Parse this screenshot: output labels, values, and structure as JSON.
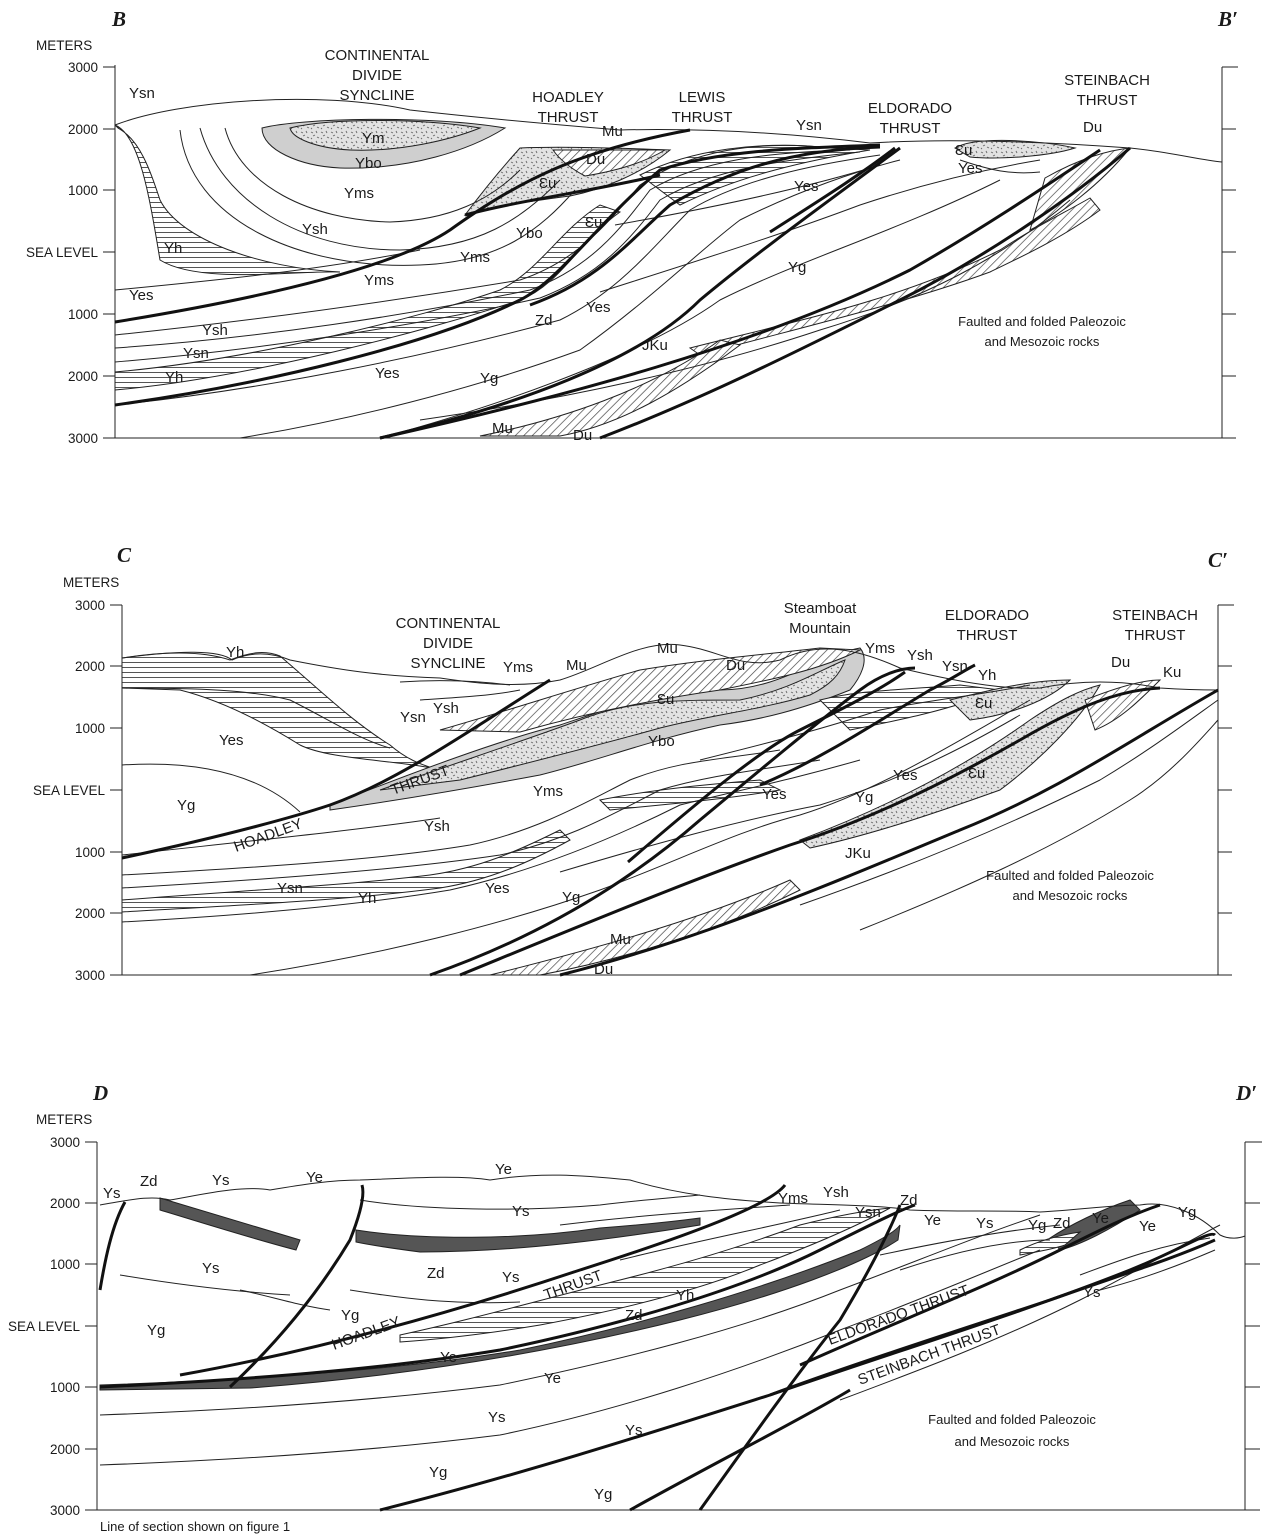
{
  "footer_note": "Line of section shown on figure 1",
  "axis": {
    "meters": "METERS",
    "sea_level": "SEA LEVEL",
    "elevations": [
      "3000",
      "2000",
      "1000",
      "1000",
      "2000",
      "3000"
    ]
  },
  "sections": [
    {
      "id": "B",
      "left": "B",
      "right": "B′",
      "titles": {
        "cds_1": "CONTINENTAL",
        "cds_2": "DIVIDE",
        "cds_3": "SYNCLINE",
        "hoadley_1": "HOADLEY",
        "hoadley_2": "THRUST",
        "lewis_1": "LEWIS",
        "lewis_2": "THRUST",
        "eldorado_1": "ELDORADO",
        "eldorado_2": "THRUST",
        "steinbach_1": "STEINBACH",
        "steinbach_2": "THRUST"
      },
      "note_1": "Faulted and folded Paleozoic",
      "note_2": "and Mesozoic rocks",
      "units": {
        "ysn_top": "Ysn",
        "ym": "Ym",
        "ybo": "Ybo",
        "yms": "Yms",
        "ysh": "Ysh",
        "yh": "Yh",
        "yes": "Yes",
        "mu": "Mu",
        "du": "Du",
        "cu1": "Ɛu",
        "cu2": "Ɛu",
        "ybo2": "Ybo",
        "yms2": "Yms",
        "yms3": "Yms",
        "ysn2": "Ysn",
        "yes2": "Yes",
        "cu3": "Ɛu",
        "yes3": "Yes",
        "du2": "Du",
        "yg": "Yg",
        "zd": "Zd",
        "yes4": "Yes",
        "ysh2": "Ysh",
        "ysn3": "Ysn",
        "yh2": "Yh",
        "yes5": "Yes",
        "yg2": "Yg",
        "jku": "JKu",
        "mu2": "Mu",
        "du3": "Du"
      }
    },
    {
      "id": "C",
      "left": "C",
      "right": "C′",
      "titles": {
        "cds_1": "CONTINENTAL",
        "cds_2": "DIVIDE",
        "cds_3": "SYNCLINE",
        "steamboat_1": "Steamboat",
        "steamboat_2": "Mountain",
        "eldorado_1": "ELDORADO",
        "eldorado_2": "THRUST",
        "steinbach_1": "STEINBACH",
        "steinbach_2": "THRUST",
        "thrust": "THRUST",
        "hoadley": "HOADLEY"
      },
      "note_1": "Faulted and folded Paleozoic",
      "note_2": "and Mesozoic rocks",
      "units": {
        "yh": "Yh",
        "yms": "Yms",
        "mu": "Mu",
        "mu2": "Mu",
        "du": "Du",
        "ysn": "Ysn",
        "ysh": "Ysh",
        "yes": "Yes",
        "cu": "Ɛu",
        "ybo": "Ybo",
        "yg": "Yg",
        "yms2": "Yms",
        "yms3": "Yms",
        "ysh2": "Ysh",
        "ysn2": "Ysn",
        "yh2": "Yh",
        "cu2": "Ɛu",
        "yes2": "Yes",
        "yes3": "Yes",
        "yg2": "Yg",
        "cu3": "Ɛu",
        "du2": "Du",
        "ku": "Ku",
        "ysh3": "Ysh",
        "jku": "JKu",
        "ysn3": "Ysn",
        "yh3": "Yh",
        "yes4": "Yes",
        "yg3": "Yg",
        "mu3": "Mu",
        "du3": "Du"
      }
    },
    {
      "id": "D",
      "left": "D",
      "right": "D′",
      "titles": {
        "thrust": "THRUST",
        "hoadley": "HOADLEY",
        "eldorado": "ELDORADO THRUST",
        "steinbach": "STEINBACH THRUST"
      },
      "note_1": "Faulted and folded Paleozoic",
      "note_2": "and Mesozoic rocks",
      "units": {
        "ys": "Ys",
        "zd": "Zd",
        "ys2": "Ys",
        "ye": "Ye",
        "ye2": "Ye",
        "ys3": "Ys",
        "yms": "Yms",
        "ysh": "Ysh",
        "ysn": "Ysn",
        "zd2": "Zd",
        "ye3": "Ye",
        "ys4": "Ys",
        "yg": "Yg",
        "zd3": "Zd",
        "ye4": "Ye",
        "ye5": "Ye",
        "yg2": "Yg",
        "ys5": "Ys",
        "zd4": "Zd",
        "ys6": "Ys",
        "yg3": "Yg",
        "yh": "Yh",
        "yg4": "Yg",
        "zd5": "Zd",
        "ye6": "Ye",
        "ys7": "Ys",
        "ye7": "Ye",
        "ys8": "Ys",
        "ys9": "Ys",
        "yg5": "Yg",
        "yg6": "Yg"
      }
    }
  ]
}
